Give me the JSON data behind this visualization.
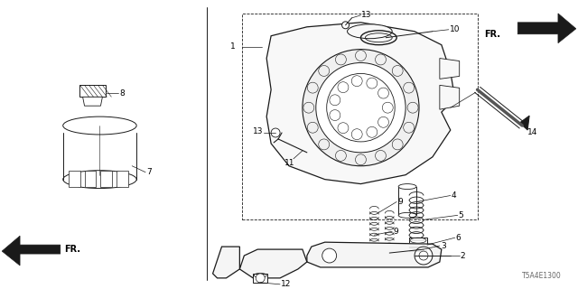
{
  "bg_color": "#ffffff",
  "fig_width": 6.4,
  "fig_height": 3.2,
  "dpi": 100,
  "diagram_code": "T5A4E1300",
  "line_color": "#1a1a1a",
  "line_width": 0.7
}
